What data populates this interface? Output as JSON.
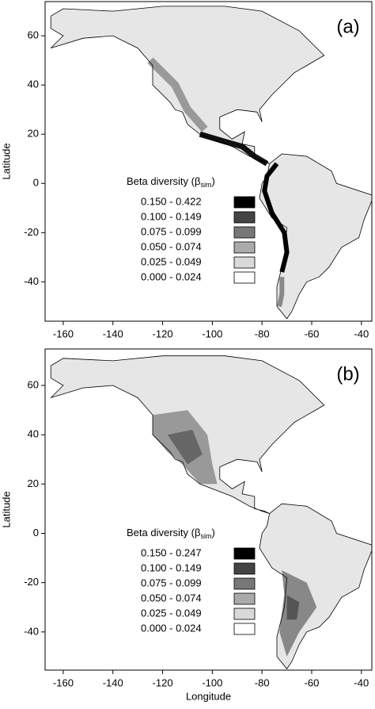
{
  "panels": [
    {
      "label": "(a)",
      "ylabel": "Latitude",
      "xlim": [
        -167.3,
        -35.8
      ],
      "ylim": [
        -56,
        73.9
      ],
      "xticks": [
        -160,
        -140,
        -120,
        -100,
        -80,
        -60,
        -40
      ],
      "yticks": [
        -40,
        -20,
        0,
        20,
        40,
        60
      ],
      "legend_title": [
        "Beta diversity (β",
        "sim",
        ")"
      ],
      "legend": [
        {
          "label": "0.150 - 0.422",
          "color": "#000000"
        },
        {
          "label": "0.100 - 0.149",
          "color": "#444444"
        },
        {
          "label": "0.075 - 0.099",
          "color": "#777777"
        },
        {
          "label": "0.050 - 0.074",
          "color": "#aaaaaa"
        },
        {
          "label": "0.025 - 0.049",
          "color": "#d9d9d9"
        },
        {
          "label": "0.000 - 0.024",
          "color": "#ffffff"
        }
      ]
    },
    {
      "label": "(b)",
      "ylabel": "Latitude",
      "xlabel": "Longitude",
      "xlim": [
        -167.3,
        -35.8
      ],
      "ylim": [
        -55.5,
        74.8
      ],
      "xticks": [
        -160,
        -140,
        -120,
        -100,
        -80,
        -60,
        -40
      ],
      "yticks": [
        -40,
        -20,
        0,
        20,
        40,
        60
      ],
      "legend_title": [
        "Beta diversity (β",
        "sim",
        ")"
      ],
      "legend": [
        {
          "label": "0.150 - 0.247",
          "color": "#000000"
        },
        {
          "label": "0.100 - 0.149",
          "color": "#444444"
        },
        {
          "label": "0.075 - 0.099",
          "color": "#777777"
        },
        {
          "label": "0.050 - 0.074",
          "color": "#aaaaaa"
        },
        {
          "label": "0.025 - 0.049",
          "color": "#d9d9d9"
        },
        {
          "label": "0.000 - 0.024",
          "color": "#ffffff"
        }
      ]
    }
  ]
}
